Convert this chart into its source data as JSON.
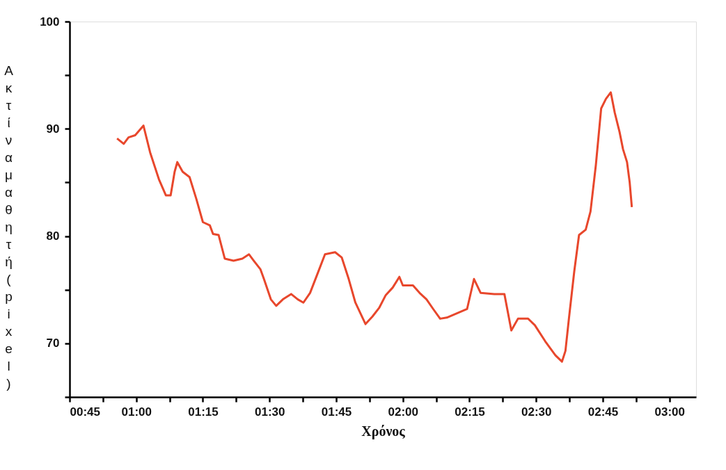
{
  "chart_data": {
    "type": "line",
    "xlabel": "Χρόνος",
    "ylabel": "Ακτίνα μαθητή(pixel)",
    "xlim": [
      0.75,
      3.1
    ],
    "ylim": [
      65,
      100
    ],
    "xticks": [
      {
        "value": 0.75,
        "label": "00:45"
      },
      {
        "value": 0.875,
        "label": null
      },
      {
        "value": 1.0,
        "label": "01:00"
      },
      {
        "value": 1.125,
        "label": null
      },
      {
        "value": 1.25,
        "label": "01:15"
      },
      {
        "value": 1.375,
        "label": null
      },
      {
        "value": 1.5,
        "label": "01:30"
      },
      {
        "value": 1.625,
        "label": null
      },
      {
        "value": 1.75,
        "label": "01:45"
      },
      {
        "value": 1.875,
        "label": null
      },
      {
        "value": 2.0,
        "label": "02:00"
      },
      {
        "value": 2.125,
        "label": null
      },
      {
        "value": 2.25,
        "label": "02:15"
      },
      {
        "value": 2.375,
        "label": null
      },
      {
        "value": 2.5,
        "label": "02:30"
      },
      {
        "value": 2.625,
        "label": null
      },
      {
        "value": 2.75,
        "label": "02:45"
      },
      {
        "value": 2.875,
        "label": null
      },
      {
        "value": 3.0,
        "label": "03:00"
      }
    ],
    "yticks": [
      {
        "value": 65,
        "label": null
      },
      70,
      {
        "value": 75,
        "label": null
      },
      80,
      {
        "value": 85,
        "label": null
      },
      90,
      {
        "value": 95,
        "label": null
      },
      100
    ],
    "grid": false,
    "marker": "none",
    "line_style": "solid",
    "series": [
      {
        "color": "#e8472c",
        "x": [
          0.928,
          0.953,
          0.971,
          0.996,
          1.027,
          1.052,
          1.085,
          1.111,
          1.129,
          1.144,
          1.154,
          1.174,
          1.2,
          1.225,
          1.25,
          1.276,
          1.288,
          1.309,
          1.332,
          1.365,
          1.398,
          1.423,
          1.441,
          1.466,
          1.479,
          1.505,
          1.525,
          1.55,
          1.581,
          1.606,
          1.627,
          1.652,
          1.677,
          1.708,
          1.746,
          1.771,
          1.797,
          1.822,
          1.86,
          1.886,
          1.911,
          1.936,
          1.962,
          1.987,
          2.0,
          2.038,
          2.063,
          2.089,
          2.114,
          2.14,
          2.165,
          2.203,
          2.241,
          2.267,
          2.292,
          2.343,
          2.381,
          2.407,
          2.432,
          2.47,
          2.495,
          2.534,
          2.572,
          2.597,
          2.61,
          2.623,
          2.643,
          2.661,
          2.686,
          2.704,
          2.724,
          2.744,
          2.762,
          2.78,
          2.795,
          2.813,
          2.826,
          2.841,
          2.851,
          2.859
        ],
        "values": [
          89.1,
          88.6,
          89.2,
          89.4,
          90.3,
          87.8,
          85.3,
          83.8,
          83.8,
          86.0,
          86.9,
          86.0,
          85.5,
          83.5,
          81.3,
          81.0,
          80.2,
          80.1,
          77.9,
          77.7,
          77.9,
          78.3,
          77.7,
          76.9,
          76.0,
          74.1,
          73.5,
          74.1,
          74.6,
          74.1,
          73.8,
          74.7,
          76.3,
          78.3,
          78.5,
          78.0,
          76.0,
          73.8,
          71.8,
          72.5,
          73.3,
          74.5,
          75.2,
          76.2,
          75.4,
          75.4,
          74.7,
          74.1,
          73.2,
          72.3,
          72.4,
          72.8,
          73.2,
          76.0,
          74.7,
          74.6,
          74.6,
          71.2,
          72.3,
          72.3,
          71.7,
          70.2,
          68.9,
          68.3,
          69.3,
          72.3,
          76.7,
          80.1,
          80.6,
          82.3,
          86.6,
          91.9,
          92.8,
          93.4,
          91.5,
          89.7,
          88.1,
          86.9,
          85.0,
          82.7
        ]
      }
    ]
  }
}
